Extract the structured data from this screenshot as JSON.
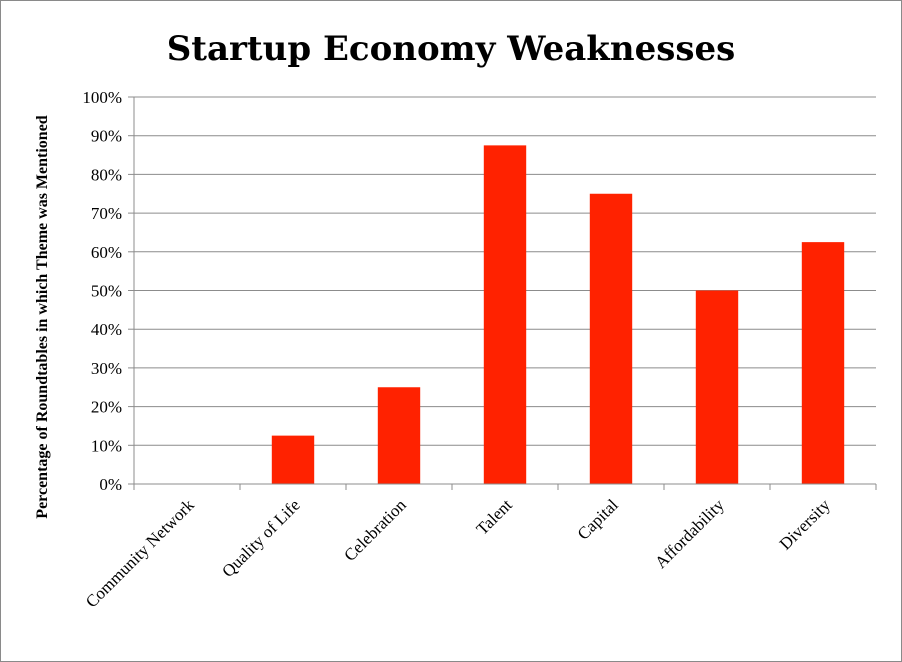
{
  "chart_data": {
    "type": "bar",
    "title": "Startup Economy Weaknesses",
    "ylabel": "Percentage of Roundtables in which Theme was Mentioned",
    "xlabel": "",
    "categories": [
      "Community Network",
      "Quality of Life",
      "Celebration",
      "Talent",
      "Capital",
      "Affordability",
      "Diversity"
    ],
    "values": [
      0,
      12.5,
      25,
      87.5,
      75,
      50,
      62.5
    ],
    "ylim": [
      0,
      100
    ],
    "yticks": [
      "0%",
      "10%",
      "20%",
      "30%",
      "40%",
      "50%",
      "60%",
      "70%",
      "80%",
      "90%",
      "100%"
    ],
    "bar_color": "#ff2200",
    "grid": true,
    "legend": "none"
  }
}
